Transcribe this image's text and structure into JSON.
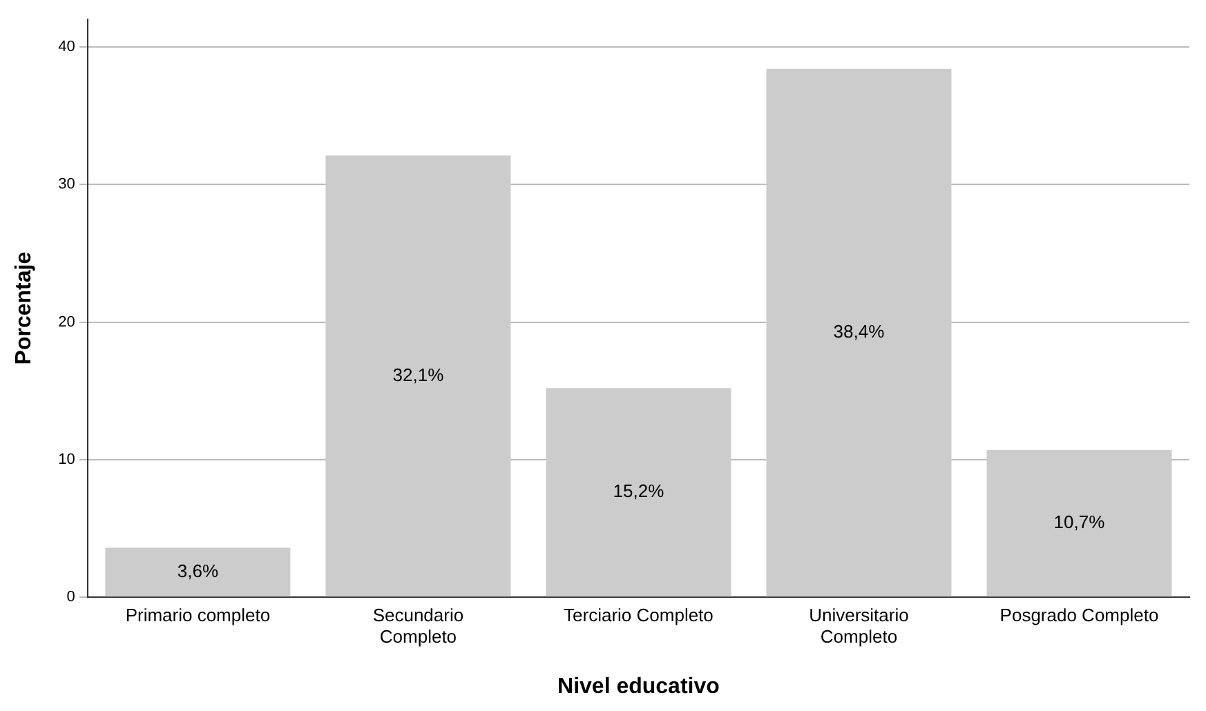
{
  "chart_data": {
    "type": "bar",
    "xlabel": "Nivel educativo",
    "ylabel": "Porcentaje",
    "categories": [
      "Primario completo",
      "Secundario Completo",
      "Terciario Completo",
      "Universitario Completo",
      "Posgrado Completo"
    ],
    "values": [
      3.6,
      32.1,
      15.2,
      38.4,
      10.7
    ],
    "value_labels": [
      "3,6%",
      "32,1%",
      "15,2%",
      "38,4%",
      "10,7%"
    ],
    "color": "#cccccc",
    "ylim": [
      0,
      42
    ],
    "yticks": [
      0,
      10,
      20,
      30,
      40
    ],
    "grid": "y",
    "legend": false
  }
}
